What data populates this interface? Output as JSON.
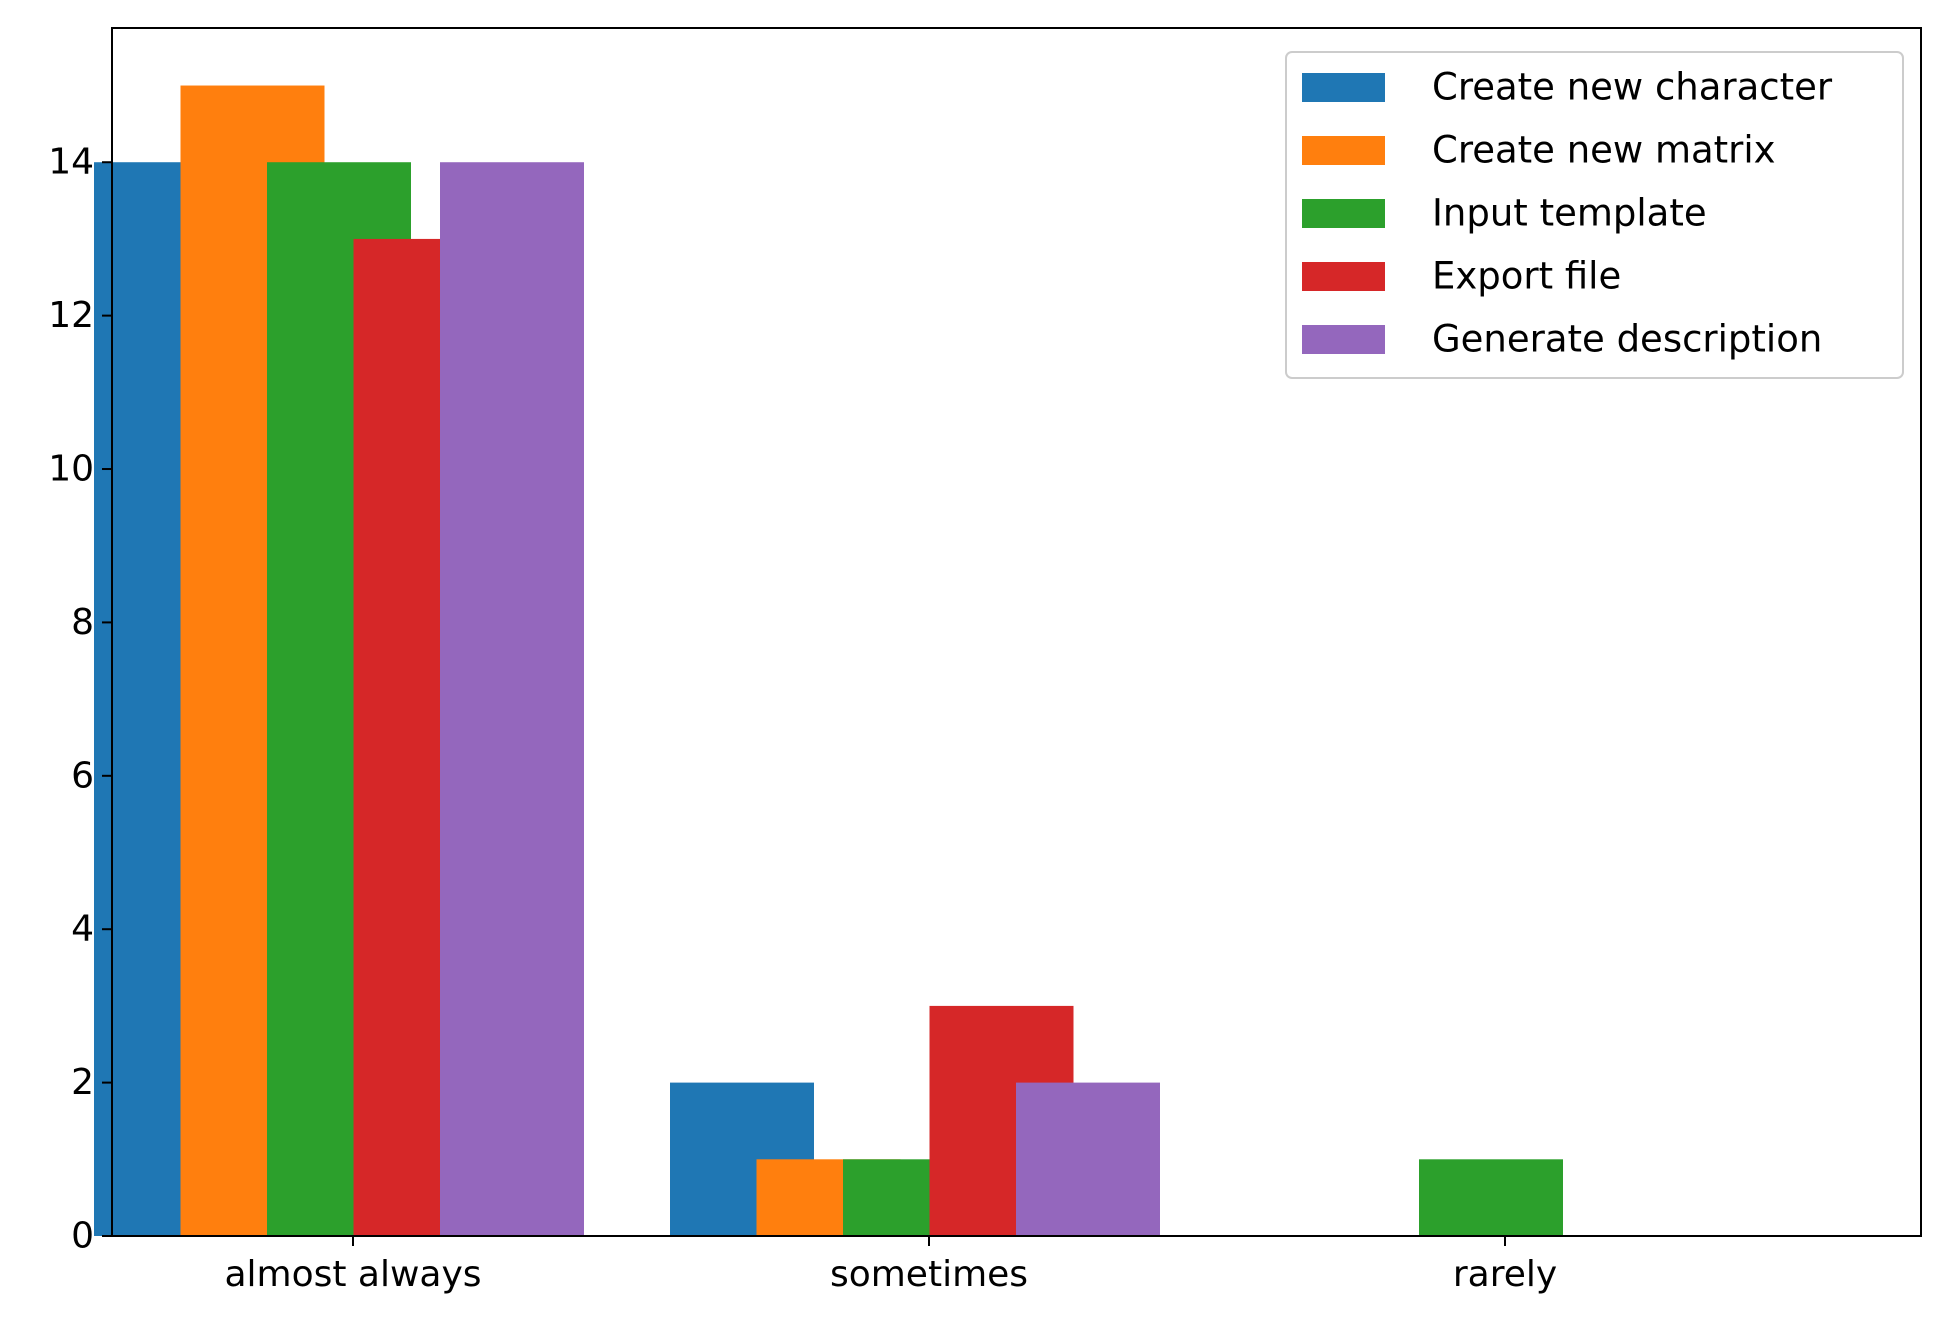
{
  "chart_data": {
    "type": "bar",
    "categories": [
      "almost always",
      "sometimes",
      "rarely"
    ],
    "series": [
      {
        "name": "Create new character",
        "values": [
          14,
          2,
          0
        ],
        "color": "#1f77b4"
      },
      {
        "name": "Create new matrix",
        "values": [
          15,
          1,
          0
        ],
        "color": "#ff7f0e"
      },
      {
        "name": "Input template",
        "values": [
          14,
          1,
          1
        ],
        "color": "#2ca02c"
      },
      {
        "name": "Export file",
        "values": [
          13,
          3,
          0
        ],
        "color": "#d62728"
      },
      {
        "name": "Generate description",
        "values": [
          14,
          2,
          0
        ],
        "color": "#9467bd"
      }
    ],
    "yticks": [
      0,
      2,
      4,
      6,
      8,
      10,
      12,
      14
    ],
    "ylim": [
      0,
      15.75
    ],
    "title": "",
    "xlabel": "",
    "ylabel": "",
    "grid": false,
    "legend_position": "top-right"
  }
}
